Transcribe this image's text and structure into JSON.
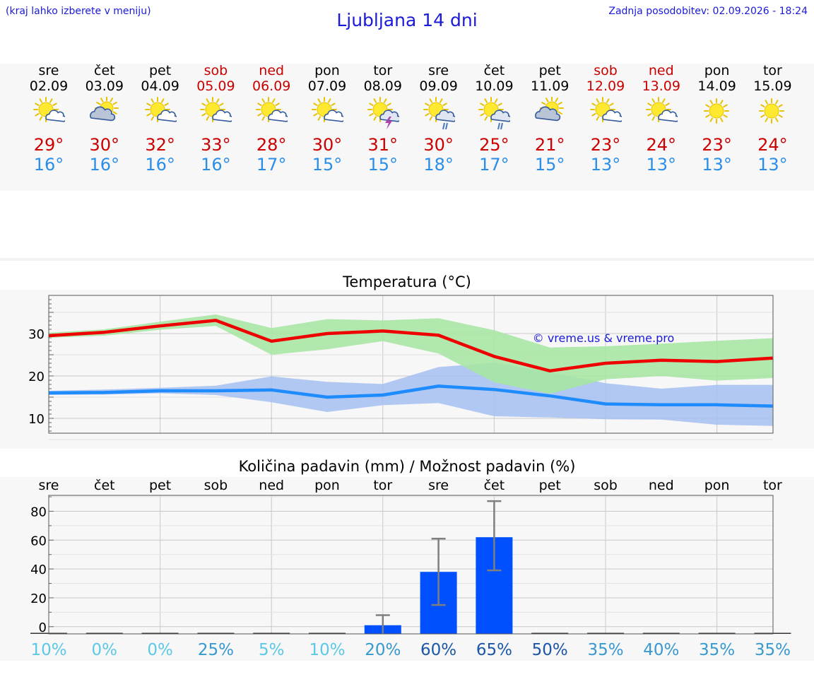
{
  "header": {
    "hint": "(kraj lahko izberete v meniju)",
    "title": "Ljubljana 14 dni",
    "updated": "Zadnja posodobitev: 02.09.2026 - 18:24"
  },
  "days": [
    {
      "name": "sre",
      "date": "02.09",
      "weekend": false,
      "icon": "sun-cloud-icon",
      "max": "29°",
      "min": "16°"
    },
    {
      "name": "čet",
      "date": "03.09",
      "weekend": false,
      "icon": "cloud-sun-icon",
      "max": "30°",
      "min": "16°"
    },
    {
      "name": "pet",
      "date": "04.09",
      "weekend": false,
      "icon": "sun-cloud-icon",
      "max": "32°",
      "min": "16°"
    },
    {
      "name": "sob",
      "date": "05.09",
      "weekend": true,
      "icon": "sun-cloud-icon",
      "max": "33°",
      "min": "16°"
    },
    {
      "name": "ned",
      "date": "06.09",
      "weekend": true,
      "icon": "sun-cloud-icon",
      "max": "28°",
      "min": "17°"
    },
    {
      "name": "pon",
      "date": "07.09",
      "weekend": false,
      "icon": "sun-cloud-icon",
      "max": "30°",
      "min": "15°"
    },
    {
      "name": "tor",
      "date": "08.09",
      "weekend": false,
      "icon": "sun-thunder-icon",
      "max": "31°",
      "min": "15°"
    },
    {
      "name": "sre",
      "date": "09.09",
      "weekend": false,
      "icon": "sun-rain-icon",
      "max": "30°",
      "min": "18°"
    },
    {
      "name": "čet",
      "date": "10.09",
      "weekend": false,
      "icon": "sun-rain-icon",
      "max": "25°",
      "min": "17°"
    },
    {
      "name": "pet",
      "date": "11.09",
      "weekend": false,
      "icon": "cloud-sun-icon",
      "max": "21°",
      "min": "15°"
    },
    {
      "name": "sob",
      "date": "12.09",
      "weekend": true,
      "icon": "sun-cloud-icon",
      "max": "23°",
      "min": "13°"
    },
    {
      "name": "ned",
      "date": "13.09",
      "weekend": true,
      "icon": "sun-cloud-icon",
      "max": "24°",
      "min": "13°"
    },
    {
      "name": "pon",
      "date": "14.09",
      "weekend": false,
      "icon": "sun-icon",
      "max": "23°",
      "min": "13°"
    },
    {
      "name": "tor",
      "date": "15.09",
      "weekend": false,
      "icon": "sun-icon",
      "max": "24°",
      "min": "13°"
    }
  ],
  "colors": {
    "max_line": "#ee0000",
    "max_band": "#a9e6a4",
    "min_line": "#1e8bff",
    "min_band": "#a4bff2",
    "bar": "#0050ff",
    "weekend_text": "#cc0000",
    "min_text": "#2a8ee8"
  },
  "chart_data": [
    {
      "type": "line",
      "title": "Temperatura (°C)",
      "watermark": "© vreme.us & vreme.pro",
      "ylim": [
        6.5,
        39
      ],
      "yticks": [
        10,
        20,
        30
      ],
      "grid": true,
      "x": [
        "02.09",
        "03.09",
        "04.09",
        "05.09",
        "06.09",
        "07.09",
        "08.09",
        "09.09",
        "10.09",
        "11.09",
        "12.09",
        "13.09",
        "14.09",
        "15.09"
      ],
      "series": [
        {
          "name": "max",
          "values": [
            29.5,
            30.3,
            31.8,
            33.1,
            28.2,
            30.0,
            30.6,
            29.6,
            24.6,
            21.2,
            23.0,
            23.7,
            23.4,
            24.2
          ],
          "band_low": [
            29.0,
            29.5,
            30.9,
            31.8,
            25.0,
            26.3,
            28.2,
            25.3,
            18.5,
            15.8,
            19.2,
            20.0,
            18.9,
            19.5
          ],
          "band_high": [
            30.2,
            31.0,
            32.8,
            34.5,
            31.3,
            33.4,
            33.1,
            33.6,
            30.8,
            26.7,
            27.0,
            27.6,
            28.3,
            28.9
          ]
        },
        {
          "name": "min",
          "values": [
            16.0,
            16.1,
            16.5,
            16.5,
            16.7,
            15.0,
            15.5,
            17.6,
            16.8,
            15.3,
            13.4,
            13.2,
            13.2,
            12.9
          ],
          "band_low": [
            15.5,
            15.6,
            15.9,
            15.5,
            13.8,
            11.5,
            13.1,
            13.6,
            10.5,
            10.2,
            9.8,
            9.7,
            8.5,
            8.2
          ],
          "band_high": [
            16.5,
            16.8,
            17.2,
            17.7,
            19.9,
            18.6,
            18.1,
            22.1,
            23.1,
            20.9,
            18.3,
            17.0,
            17.9,
            17.9
          ]
        }
      ]
    },
    {
      "type": "bar",
      "title": "Količina padavin (mm) / Možnost padavin (%)",
      "categories": [
        "sre",
        "čet",
        "pet",
        "sob",
        "ned",
        "pon",
        "tor",
        "sre",
        "čet",
        "pet",
        "sob",
        "ned",
        "pon",
        "tor"
      ],
      "ylim": [
        -5,
        91
      ],
      "yticks": [
        0,
        20,
        40,
        60,
        80
      ],
      "grid": true,
      "values": [
        0,
        0,
        0,
        0,
        0,
        0,
        1,
        38,
        62,
        0,
        0,
        0,
        0,
        0
      ],
      "err_low": [
        0,
        0,
        0,
        0,
        0,
        0,
        0,
        15,
        39,
        0,
        0,
        0,
        0,
        0
      ],
      "err_high": [
        0,
        0,
        0,
        0,
        0,
        0,
        8,
        61,
        87,
        0,
        0,
        0,
        0,
        0
      ],
      "chance": [
        "10%",
        "0%",
        "0%",
        "25%",
        "5%",
        "10%",
        "20%",
        "60%",
        "65%",
        "50%",
        "35%",
        "40%",
        "35%",
        "35%"
      ]
    }
  ]
}
